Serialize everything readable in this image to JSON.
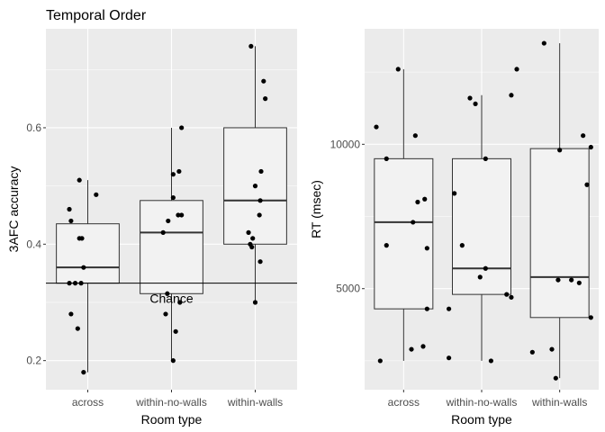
{
  "chart_data": [
    {
      "type": "boxplot",
      "title": "Temporal Order",
      "xlabel": "Room type",
      "ylabel": "3AFC accuracy",
      "categories": [
        "across",
        "within-no-walls",
        "within-walls"
      ],
      "ylim": [
        0.15,
        0.77
      ],
      "yticks": [
        0.2,
        0.4,
        0.6
      ],
      "ytick_labels": [
        "0.2",
        "0.4",
        "0.6"
      ],
      "grid": true,
      "reference_line": {
        "y": 0.333,
        "label": "Chance"
      },
      "boxes": [
        {
          "category": "across",
          "q1": 0.333,
          "median": 0.36,
          "q3": 0.435,
          "whisker_low": 0.18,
          "whisker_high": 0.51
        },
        {
          "category": "within-no-walls",
          "q1": 0.315,
          "median": 0.42,
          "q3": 0.475,
          "whisker_low": 0.2,
          "whisker_high": 0.6
        },
        {
          "category": "within-walls",
          "q1": 0.4,
          "median": 0.475,
          "q3": 0.6,
          "whisker_low": 0.3,
          "whisker_high": 0.74
        }
      ],
      "points": [
        {
          "category": "across",
          "jitter": -0.22,
          "y": 0.333
        },
        {
          "category": "across",
          "jitter": -0.15,
          "y": 0.333
        },
        {
          "category": "across",
          "jitter": -0.08,
          "y": 0.333
        },
        {
          "category": "across",
          "jitter": -0.05,
          "y": 0.36
        },
        {
          "category": "across",
          "jitter": -0.2,
          "y": 0.28
        },
        {
          "category": "across",
          "jitter": -0.12,
          "y": 0.255
        },
        {
          "category": "across",
          "jitter": -0.05,
          "y": 0.18
        },
        {
          "category": "across",
          "jitter": -0.22,
          "y": 0.46
        },
        {
          "category": "across",
          "jitter": -0.2,
          "y": 0.44
        },
        {
          "category": "across",
          "jitter": -0.1,
          "y": 0.41
        },
        {
          "category": "across",
          "jitter": -0.07,
          "y": 0.41
        },
        {
          "category": "across",
          "jitter": -0.1,
          "y": 0.51
        },
        {
          "category": "across",
          "jitter": 0.1,
          "y": 0.485
        },
        {
          "category": "within-no-walls",
          "jitter": -0.05,
          "y": 0.315
        },
        {
          "category": "within-no-walls",
          "jitter": 0.1,
          "y": 0.3
        },
        {
          "category": "within-no-walls",
          "jitter": -0.07,
          "y": 0.28
        },
        {
          "category": "within-no-walls",
          "jitter": 0.05,
          "y": 0.25
        },
        {
          "category": "within-no-walls",
          "jitter": 0.02,
          "y": 0.2
        },
        {
          "category": "within-no-walls",
          "jitter": -0.1,
          "y": 0.42
        },
        {
          "category": "within-no-walls",
          "jitter": -0.04,
          "y": 0.44
        },
        {
          "category": "within-no-walls",
          "jitter": 0.08,
          "y": 0.45
        },
        {
          "category": "within-no-walls",
          "jitter": 0.12,
          "y": 0.45
        },
        {
          "category": "within-no-walls",
          "jitter": 0.02,
          "y": 0.48
        },
        {
          "category": "within-no-walls",
          "jitter": 0.02,
          "y": 0.52
        },
        {
          "category": "within-no-walls",
          "jitter": 0.09,
          "y": 0.525
        },
        {
          "category": "within-no-walls",
          "jitter": 0.12,
          "y": 0.6
        },
        {
          "category": "within-walls",
          "jitter": -0.05,
          "y": 0.74
        },
        {
          "category": "within-walls",
          "jitter": 0.1,
          "y": 0.68
        },
        {
          "category": "within-walls",
          "jitter": 0.12,
          "y": 0.65
        },
        {
          "category": "within-walls",
          "jitter": 0.07,
          "y": 0.525
        },
        {
          "category": "within-walls",
          "jitter": 0.0,
          "y": 0.5
        },
        {
          "category": "within-walls",
          "jitter": 0.06,
          "y": 0.475
        },
        {
          "category": "within-walls",
          "jitter": 0.05,
          "y": 0.45
        },
        {
          "category": "within-walls",
          "jitter": -0.08,
          "y": 0.42
        },
        {
          "category": "within-walls",
          "jitter": -0.03,
          "y": 0.41
        },
        {
          "category": "within-walls",
          "jitter": -0.06,
          "y": 0.4
        },
        {
          "category": "within-walls",
          "jitter": -0.04,
          "y": 0.395
        },
        {
          "category": "within-walls",
          "jitter": 0.06,
          "y": 0.37
        },
        {
          "category": "within-walls",
          "jitter": 0.0,
          "y": 0.3
        }
      ]
    },
    {
      "type": "boxplot",
      "title": "",
      "xlabel": "Room type",
      "ylabel": "RT (msec)",
      "categories": [
        "across",
        "within-no-walls",
        "within-walls"
      ],
      "ylim": [
        1500,
        14000
      ],
      "yticks": [
        5000,
        10000
      ],
      "ytick_labels": [
        "5000",
        "10000"
      ],
      "grid": true,
      "boxes": [
        {
          "category": "across",
          "q1": 4300,
          "median": 7300,
          "q3": 9500,
          "whisker_low": 2500,
          "whisker_high": 12600
        },
        {
          "category": "within-no-walls",
          "q1": 4800,
          "median": 5700,
          "q3": 9500,
          "whisker_low": 2500,
          "whisker_high": 11700
        },
        {
          "category": "within-walls",
          "q1": 4000,
          "median": 5400,
          "q3": 9850,
          "whisker_low": 1900,
          "whisker_high": 13500
        }
      ],
      "points": [
        {
          "category": "across",
          "jitter": -0.35,
          "y": 10600
        },
        {
          "category": "across",
          "jitter": -0.22,
          "y": 9500
        },
        {
          "category": "across",
          "jitter": 0.15,
          "y": 10300
        },
        {
          "category": "across",
          "jitter": -0.07,
          "y": 12600
        },
        {
          "category": "across",
          "jitter": 0.18,
          "y": 8000
        },
        {
          "category": "across",
          "jitter": 0.27,
          "y": 8100
        },
        {
          "category": "across",
          "jitter": 0.12,
          "y": 7300
        },
        {
          "category": "across",
          "jitter": -0.22,
          "y": 6500
        },
        {
          "category": "across",
          "jitter": 0.3,
          "y": 6400
        },
        {
          "category": "across",
          "jitter": 0.3,
          "y": 4300
        },
        {
          "category": "across",
          "jitter": 0.1,
          "y": 2900
        },
        {
          "category": "across",
          "jitter": 0.25,
          "y": 3000
        },
        {
          "category": "across",
          "jitter": -0.3,
          "y": 2500
        },
        {
          "category": "within-no-walls",
          "jitter": -0.42,
          "y": 4300
        },
        {
          "category": "within-no-walls",
          "jitter": -0.42,
          "y": 2600
        },
        {
          "category": "within-no-walls",
          "jitter": -0.35,
          "y": 8300
        },
        {
          "category": "within-no-walls",
          "jitter": -0.25,
          "y": 6500
        },
        {
          "category": "within-no-walls",
          "jitter": -0.15,
          "y": 11600
        },
        {
          "category": "within-no-walls",
          "jitter": -0.08,
          "y": 11400
        },
        {
          "category": "within-no-walls",
          "jitter": 0.05,
          "y": 9500
        },
        {
          "category": "within-no-walls",
          "jitter": 0.05,
          "y": 5700
        },
        {
          "category": "within-no-walls",
          "jitter": -0.02,
          "y": 5400
        },
        {
          "category": "within-no-walls",
          "jitter": 0.12,
          "y": 2500
        },
        {
          "category": "within-no-walls",
          "jitter": 0.32,
          "y": 4800
        },
        {
          "category": "within-no-walls",
          "jitter": 0.38,
          "y": 4700
        },
        {
          "category": "within-no-walls",
          "jitter": 0.38,
          "y": 11700
        },
        {
          "category": "within-no-walls",
          "jitter": 0.45,
          "y": 12600
        },
        {
          "category": "within-walls",
          "jitter": -0.35,
          "y": 2800
        },
        {
          "category": "within-walls",
          "jitter": -0.2,
          "y": 13500
        },
        {
          "category": "within-walls",
          "jitter": -0.1,
          "y": 2900
        },
        {
          "category": "within-walls",
          "jitter": -0.05,
          "y": 1900
        },
        {
          "category": "within-walls",
          "jitter": -0.02,
          "y": 5300
        },
        {
          "category": "within-walls",
          "jitter": 0.0,
          "y": 9800
        },
        {
          "category": "within-walls",
          "jitter": 0.15,
          "y": 5300
        },
        {
          "category": "within-walls",
          "jitter": 0.25,
          "y": 5200
        },
        {
          "category": "within-walls",
          "jitter": 0.3,
          "y": 10300
        },
        {
          "category": "within-walls",
          "jitter": 0.4,
          "y": 9900
        },
        {
          "category": "within-walls",
          "jitter": 0.35,
          "y": 8600
        },
        {
          "category": "within-walls",
          "jitter": 0.4,
          "y": 4000
        }
      ]
    }
  ]
}
